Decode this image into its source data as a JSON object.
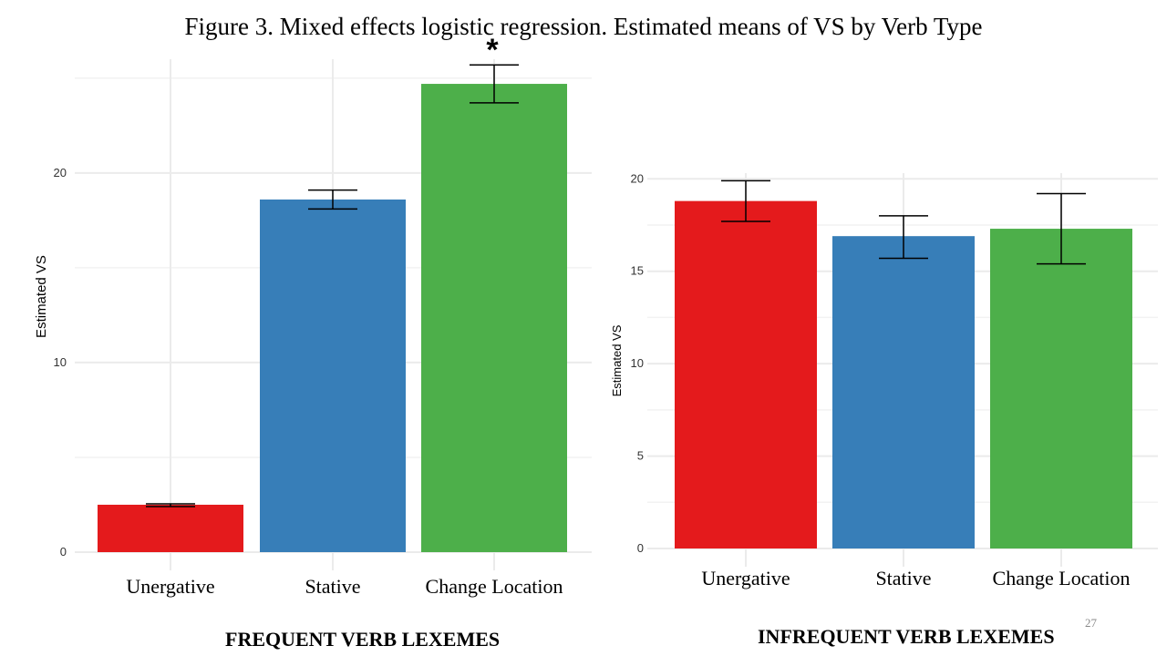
{
  "title": "Figure 3. Mixed effects logistic regression. Estimated means of VS by Verb Type",
  "slide_number": "27",
  "colors": {
    "Unergative": "#e41a1c",
    "Stative": "#377eb8",
    "Change Location": "#4daf4a"
  },
  "chart_data": [
    {
      "type": "bar",
      "caption": "FREQUENT VERB LEXEMES",
      "ylabel": "Estimated VS",
      "categories": [
        "Unergative",
        "Stative",
        "Change Location"
      ],
      "values": [
        2.5,
        18.6,
        24.7
      ],
      "error_low": [
        2.4,
        18.1,
        23.7
      ],
      "error_high": [
        2.55,
        19.1,
        25.7
      ],
      "yticks": [
        "0",
        "10",
        "20"
      ],
      "ytick_values": [
        0,
        10,
        20
      ],
      "ylim": [
        0,
        26
      ],
      "annotation": {
        "text": "*",
        "category": "Change Location"
      },
      "grid": true
    },
    {
      "type": "bar",
      "caption": "INFREQUENT VERB LEXEMES",
      "ylabel": "Estimated VS",
      "categories": [
        "Unergative",
        "Stative",
        "Change Location"
      ],
      "values": [
        18.8,
        16.9,
        17.3
      ],
      "error_low": [
        17.7,
        15.7,
        15.4
      ],
      "error_high": [
        19.9,
        18.0,
        19.2
      ],
      "yticks": [
        "0",
        "5",
        "10",
        "15",
        "20"
      ],
      "ytick_values": [
        0,
        5,
        10,
        15,
        20
      ],
      "ylim": [
        0,
        21
      ],
      "grid": true
    }
  ]
}
